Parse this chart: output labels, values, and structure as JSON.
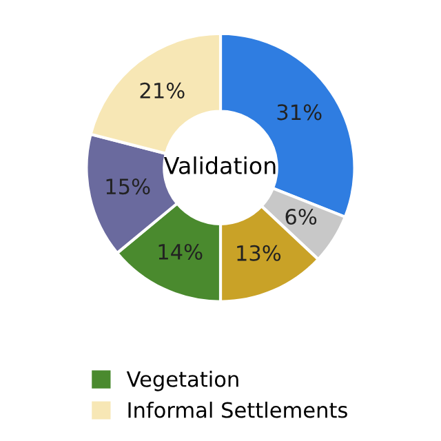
{
  "chart_data": {
    "type": "donut",
    "title": "Validation",
    "categories": [
      null,
      null,
      null,
      "Vegetation",
      null,
      "Informal Settlements"
    ],
    "values": [
      31,
      6,
      13,
      14,
      15,
      21
    ],
    "value_labels": [
      "31%",
      "6%",
      "13%",
      "14%",
      "15%",
      "21%"
    ],
    "colors": [
      "#2f7de1",
      "#c8c8c8",
      "#c9a227",
      "#4a8a2e",
      "#6a6a9e",
      "#f7e7b5"
    ],
    "legend": "bottom"
  }
}
